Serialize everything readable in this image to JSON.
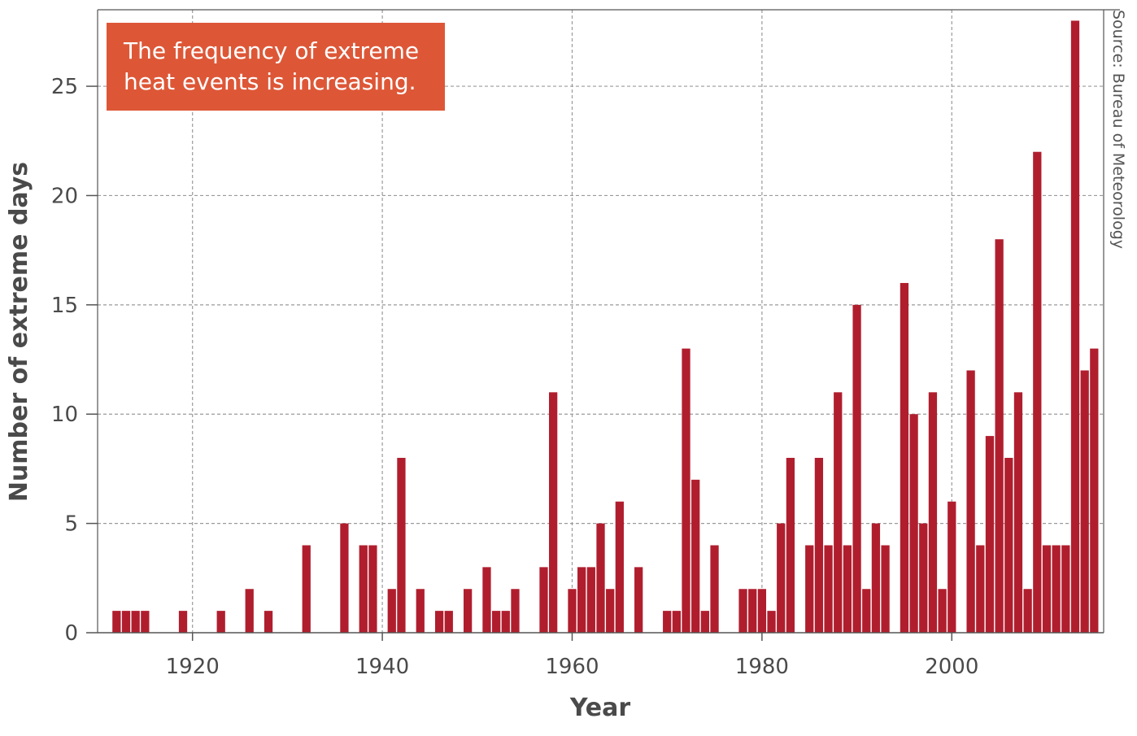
{
  "chart_data": {
    "type": "bar",
    "xlabel": "Year",
    "ylabel": "Number of extreme days",
    "annotation": [
      "The frequency of extreme",
      "heat events is increasing."
    ],
    "source": "Source: Bureau of Meteorology",
    "xlim": [
      1910,
      2016
    ],
    "ylim": [
      0,
      28.5
    ],
    "x_ticks": [
      1920,
      1940,
      1960,
      1980,
      2000
    ],
    "y_ticks": [
      0,
      5,
      10,
      15,
      20,
      25
    ],
    "grid": true,
    "x": [
      1912,
      1913,
      1914,
      1915,
      1916,
      1917,
      1918,
      1919,
      1920,
      1921,
      1922,
      1923,
      1924,
      1925,
      1926,
      1927,
      1928,
      1929,
      1930,
      1931,
      1932,
      1933,
      1934,
      1935,
      1936,
      1937,
      1938,
      1939,
      1940,
      1941,
      1942,
      1943,
      1944,
      1945,
      1946,
      1947,
      1948,
      1949,
      1950,
      1951,
      1952,
      1953,
      1954,
      1955,
      1956,
      1957,
      1958,
      1959,
      1960,
      1961,
      1962,
      1963,
      1964,
      1965,
      1966,
      1967,
      1968,
      1969,
      1970,
      1971,
      1972,
      1973,
      1974,
      1975,
      1976,
      1977,
      1978,
      1979,
      1980,
      1981,
      1982,
      1983,
      1984,
      1985,
      1986,
      1987,
      1988,
      1989,
      1990,
      1991,
      1992,
      1993,
      1994,
      1995,
      1996,
      1997,
      1998,
      1999,
      2000,
      2001,
      2002,
      2003,
      2004,
      2005,
      2006,
      2007,
      2008,
      2009,
      2010,
      2011,
      2012,
      2013,
      2014,
      2015
    ],
    "values": [
      1,
      1,
      1,
      1,
      0,
      0,
      0,
      1,
      0,
      0,
      0,
      1,
      0,
      0,
      2,
      0,
      1,
      0,
      0,
      0,
      4,
      0,
      0,
      0,
      5,
      0,
      4,
      4,
      0,
      2,
      8,
      0,
      2,
      0,
      1,
      1,
      0,
      2,
      0,
      3,
      1,
      1,
      2,
      0,
      0,
      3,
      11,
      0,
      2,
      3,
      3,
      5,
      2,
      6,
      0,
      3,
      0,
      0,
      1,
      1,
      13,
      7,
      1,
      4,
      0,
      0,
      2,
      2,
      2,
      1,
      5,
      8,
      0,
      4,
      8,
      4,
      11,
      4,
      15,
      2,
      5,
      4,
      0,
      16,
      10,
      5,
      11,
      2,
      6,
      0,
      12,
      4,
      9,
      18,
      8,
      11,
      2,
      22,
      4,
      4,
      4,
      28,
      12,
      13
    ]
  },
  "colors": {
    "bar": "#b01e2e",
    "callout_bg": "#dd5737",
    "grid": "#9a9a9a",
    "axis": "#555555"
  }
}
